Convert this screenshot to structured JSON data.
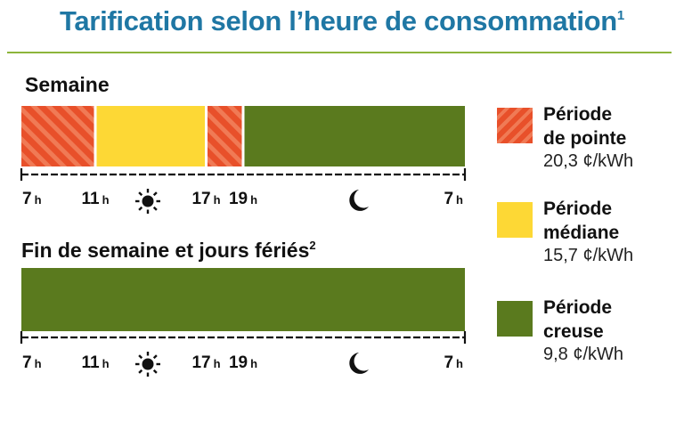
{
  "title": {
    "text": "Tarification selon l’heure de consommation",
    "note": "1"
  },
  "colors": {
    "title": "#1f77a4",
    "rule": "#8db53b",
    "peak": "#e8502a",
    "peak_stripe": "#f07a55",
    "mid": "#fdd835",
    "off": "#5a7a1e",
    "axis": "#111111"
  },
  "icons": {
    "day": "sun-icon",
    "night": "moon-icon"
  },
  "chart_data": [
    {
      "type": "bar",
      "orientation": "horizontal-timeline",
      "title": "Semaine",
      "unit": "h",
      "segments": [
        {
          "start": 7,
          "end": 11,
          "period": "peak"
        },
        {
          "start": 11,
          "end": 17,
          "period": "mid"
        },
        {
          "start": 17,
          "end": 19,
          "period": "peak"
        },
        {
          "start": 19,
          "end": 31,
          "period": "off"
        }
      ],
      "ticks": [
        "7",
        "11",
        "17",
        "19",
        "7"
      ],
      "tick_unit": "h"
    },
    {
      "type": "bar",
      "orientation": "horizontal-timeline",
      "title": "Fin de semaine et jours fériés",
      "title_note": "2",
      "unit": "h",
      "segments": [
        {
          "start": 7,
          "end": 31,
          "period": "off"
        }
      ],
      "ticks": [
        "7",
        "11",
        "17",
        "19",
        "7"
      ],
      "tick_unit": "h"
    }
  ],
  "legend": [
    {
      "id": "peak",
      "line1": "Période",
      "line2": "de pointe",
      "price": "20,3 ¢/kWh"
    },
    {
      "id": "mid",
      "line1": "Période",
      "line2": "médiane",
      "price": "15,7 ¢/kWh"
    },
    {
      "id": "off",
      "line1": "Période",
      "line2": "creuse",
      "price": "9,8 ¢/kWh"
    }
  ]
}
